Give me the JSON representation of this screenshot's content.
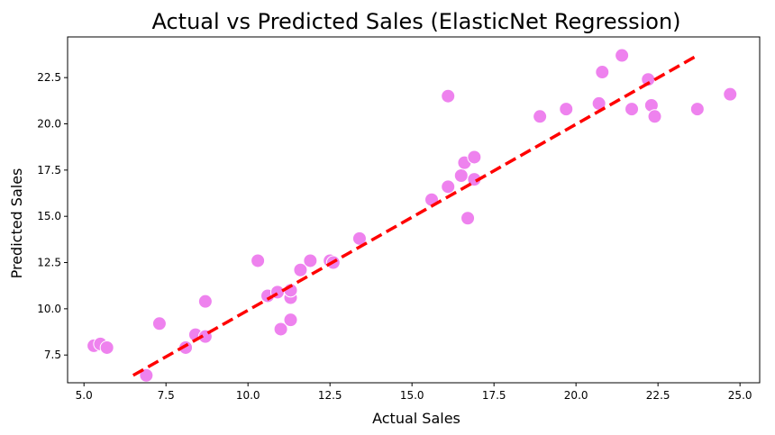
{
  "chart_data": {
    "type": "scatter",
    "title": "Actual vs Predicted Sales (ElasticNet Regression)",
    "xlabel": "Actual Sales",
    "ylabel": "Predicted Sales",
    "xlim": [
      4.5,
      25.6
    ],
    "ylim": [
      6.0,
      24.7
    ],
    "xticks": [
      5.0,
      7.5,
      10.0,
      12.5,
      15.0,
      17.5,
      20.0,
      22.5,
      25.0
    ],
    "xtick_labels": [
      "5.0",
      "7.5",
      "10.0",
      "12.5",
      "15.0",
      "17.5",
      "20.0",
      "22.5",
      "25.0"
    ],
    "yticks": [
      7.5,
      10.0,
      12.5,
      15.0,
      17.5,
      20.0,
      22.5
    ],
    "ytick_labels": [
      "7.5",
      "10.0",
      "12.5",
      "15.0",
      "17.5",
      "20.0",
      "22.5"
    ],
    "grid": false,
    "points": [
      {
        "x": 5.3,
        "y": 8.0
      },
      {
        "x": 5.5,
        "y": 8.1
      },
      {
        "x": 5.7,
        "y": 7.9
      },
      {
        "x": 6.9,
        "y": 6.4
      },
      {
        "x": 7.3,
        "y": 9.2
      },
      {
        "x": 8.1,
        "y": 7.9
      },
      {
        "x": 8.4,
        "y": 8.6
      },
      {
        "x": 8.7,
        "y": 8.5
      },
      {
        "x": 8.7,
        "y": 10.4
      },
      {
        "x": 10.3,
        "y": 12.6
      },
      {
        "x": 10.6,
        "y": 10.7
      },
      {
        "x": 10.9,
        "y": 10.9
      },
      {
        "x": 11.0,
        "y": 8.9
      },
      {
        "x": 11.3,
        "y": 10.6
      },
      {
        "x": 11.3,
        "y": 9.4
      },
      {
        "x": 11.3,
        "y": 11.0
      },
      {
        "x": 11.6,
        "y": 12.1
      },
      {
        "x": 11.9,
        "y": 12.6
      },
      {
        "x": 12.5,
        "y": 12.6
      },
      {
        "x": 12.6,
        "y": 12.5
      },
      {
        "x": 13.4,
        "y": 13.8
      },
      {
        "x": 15.6,
        "y": 15.9
      },
      {
        "x": 16.1,
        "y": 16.6
      },
      {
        "x": 16.1,
        "y": 21.5
      },
      {
        "x": 16.5,
        "y": 17.2
      },
      {
        "x": 16.6,
        "y": 17.9
      },
      {
        "x": 16.7,
        "y": 14.9
      },
      {
        "x": 16.9,
        "y": 18.2
      },
      {
        "x": 16.9,
        "y": 17.0
      },
      {
        "x": 18.9,
        "y": 20.4
      },
      {
        "x": 19.7,
        "y": 20.8
      },
      {
        "x": 20.7,
        "y": 21.1
      },
      {
        "x": 20.8,
        "y": 22.8
      },
      {
        "x": 21.4,
        "y": 23.7
      },
      {
        "x": 21.7,
        "y": 20.8
      },
      {
        "x": 22.2,
        "y": 22.4
      },
      {
        "x": 22.3,
        "y": 21.0
      },
      {
        "x": 22.4,
        "y": 20.4
      },
      {
        "x": 23.7,
        "y": 20.8
      },
      {
        "x": 24.7,
        "y": 21.6
      }
    ],
    "reference_line": {
      "x": [
        6.5,
        23.7
      ],
      "y": [
        6.4,
        23.7
      ],
      "style": "dashed",
      "color": "#ff0000"
    },
    "point_color": "#ee82ee",
    "point_edge_color": "#ffffff"
  }
}
